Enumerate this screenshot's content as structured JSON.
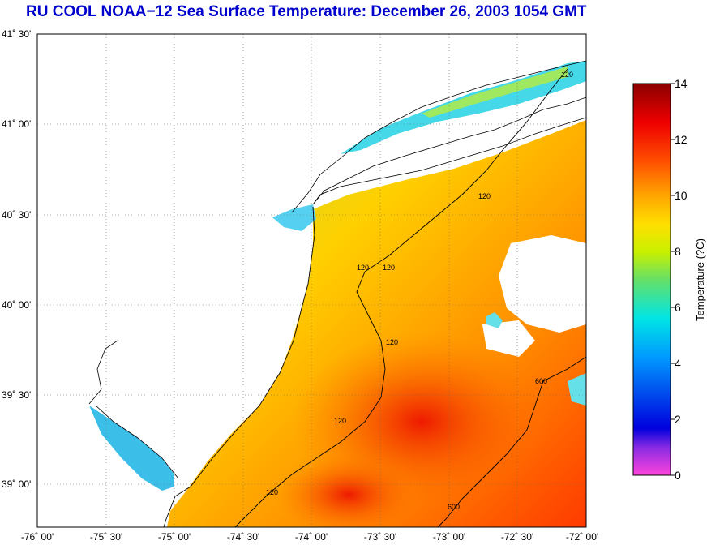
{
  "title": "RU COOL  NOAA−12  Sea Surface Temperature:  December 26, 2003 1054 GMT",
  "lat_labels": [
    "41˚ 30'",
    "41˚ 00'",
    "40˚ 30'",
    "40˚ 00'",
    "39˚ 30'",
    "39˚ 00'"
  ],
  "lon_labels": [
    "-76˚ 00'",
    "-75˚ 30'",
    "-75˚ 00'",
    "-74˚ 30'",
    "-74˚ 00'",
    "-73˚ 30'",
    "-73˚ 00'",
    "-72˚ 30'",
    "-72˚ 00'"
  ],
  "colorbar": {
    "label": "Temperature (?C)",
    "ticks": [
      "14",
      "12",
      "10",
      "8",
      "6",
      "4",
      "2",
      "0"
    ],
    "range": [
      0,
      14
    ]
  },
  "isobaths": {
    "label_120": "120",
    "label_600": "600"
  },
  "colors": {
    "title": "#0000cc",
    "land": "#ffffff",
    "coast": "#000000"
  }
}
